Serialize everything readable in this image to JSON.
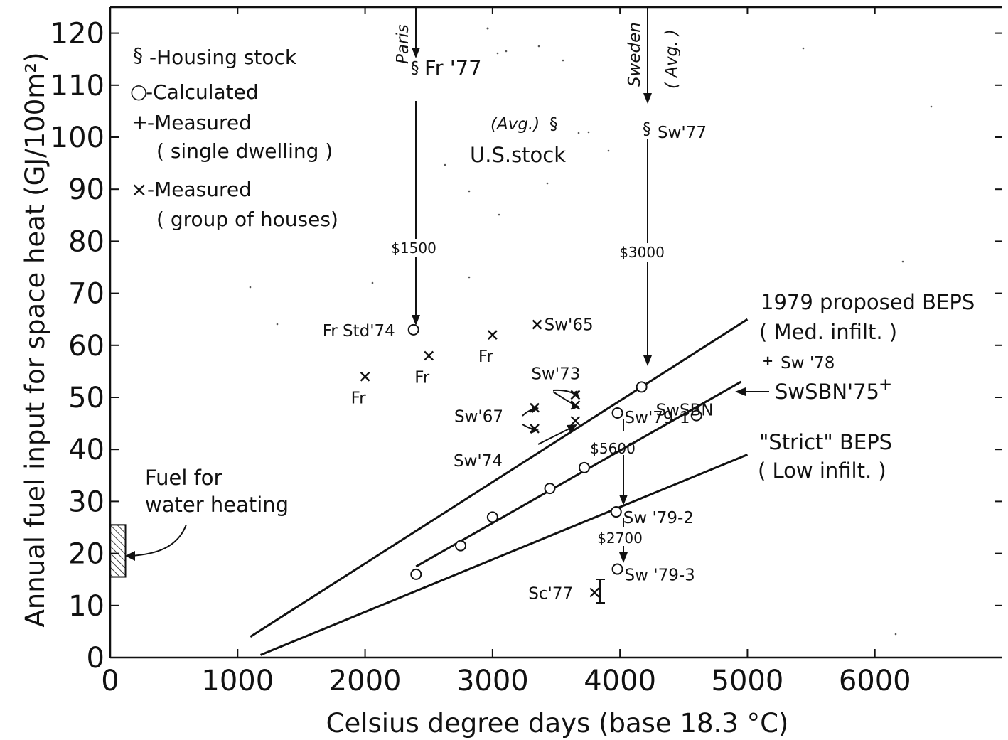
{
  "chart_data": {
    "type": "scatter",
    "xlabel": "Celsius degree days (base 18.3 °C)",
    "ylabel": "Annual fuel input for space heat (GJ/100m²)",
    "xlim": [
      0,
      7000
    ],
    "ylim": [
      0,
      125
    ],
    "x_ticks": [
      "0",
      "1000",
      "2000",
      "3000",
      "4000",
      "5000",
      "6000"
    ],
    "y_ticks": [
      "0",
      "10",
      "20",
      "30",
      "40",
      "50",
      "60",
      "70",
      "80",
      "90",
      "100",
      "110",
      "120"
    ],
    "legend": [
      {
        "symbol": "§",
        "text": "-Housing stock"
      },
      {
        "symbol": "○",
        "text": "-Calculated"
      },
      {
        "symbol": "+",
        "text": "-Measured",
        "sub": "( single dwelling )"
      },
      {
        "symbol": "×",
        "text": "-Measured",
        "sub": "( group of houses)"
      }
    ],
    "lines": [
      {
        "name": "1979 proposed BEPS",
        "sub": "( Med. infilt. )",
        "x": [
          1100,
          5000
        ],
        "y": [
          4,
          65
        ]
      },
      {
        "name": "SwSBN'75",
        "x": [
          2400,
          4950
        ],
        "y": [
          17.5,
          53
        ]
      },
      {
        "name": "\"Strict\" BEPS",
        "sub": "( Low infilt. )",
        "x": [
          1180,
          5000
        ],
        "y": [
          0.5,
          39
        ]
      }
    ],
    "housing_stock": [
      {
        "label": "Fr '77",
        "x": 2380,
        "y": 113
      },
      {
        "label": "Sw'77",
        "x": 4180,
        "y": 101
      },
      {
        "label": "(Avg.)",
        "label2": "U.S.stock",
        "x": 3550,
        "y": 103
      }
    ],
    "calculated": [
      {
        "label": "Fr Std'74",
        "x": 2380,
        "y": 63
      },
      {
        "label": "SwSBN",
        "x": 4170,
        "y": 52
      },
      {
        "label": "Sw'79-1",
        "x": 3980,
        "y": 47
      },
      {
        "label": "",
        "x": 4600,
        "y": 46.5
      },
      {
        "label": "",
        "x": 2400,
        "y": 16
      },
      {
        "label": "",
        "x": 2750,
        "y": 21.5
      },
      {
        "label": "",
        "x": 3000,
        "y": 27
      },
      {
        "label": "",
        "x": 3450,
        "y": 32.5
      },
      {
        "label": "",
        "x": 3720,
        "y": 36.5
      },
      {
        "label": "Sw '79-2",
        "x": 3970,
        "y": 28
      },
      {
        "label": "Sw '79-3",
        "x": 3980,
        "y": 17
      }
    ],
    "measured_single": [
      {
        "label": "Sw '78",
        "x": 5160,
        "y": 57
      }
    ],
    "measured_group": [
      {
        "label": "Fr",
        "x": 2000,
        "y": 54
      },
      {
        "label": "Fr",
        "x": 2500,
        "y": 58
      },
      {
        "label": "Fr",
        "x": 3000,
        "y": 62
      },
      {
        "label": "Sw'65",
        "x": 3350,
        "y": 64
      },
      {
        "label": "Sw'73",
        "x": 3650,
        "y": 50.5
      },
      {
        "label": "",
        "x": 3650,
        "y": 48.5
      },
      {
        "label": "Sw'67",
        "x": 3330,
        "y": 48
      },
      {
        "label": "Sw'74",
        "x": 3330,
        "y": 44
      },
      {
        "label": "",
        "x": 3650,
        "y": 45.5
      },
      {
        "label": "Sc'77",
        "x": 3800,
        "y": 12.5
      }
    ],
    "annotations": {
      "paris": "Paris",
      "sweden": "Sweden",
      "sweden_avg": "( Avg. )",
      "cost_1500": "$1500",
      "cost_3000": "$3000",
      "cost_5600": "$5600",
      "cost_2700": "$2700",
      "beps_sup": "+",
      "fuel_water_1": "Fuel for",
      "fuel_water_2": "water heating"
    },
    "water_heating_bar": {
      "x": [
        0,
        120
      ],
      "y": [
        15.5,
        25.5
      ]
    }
  }
}
